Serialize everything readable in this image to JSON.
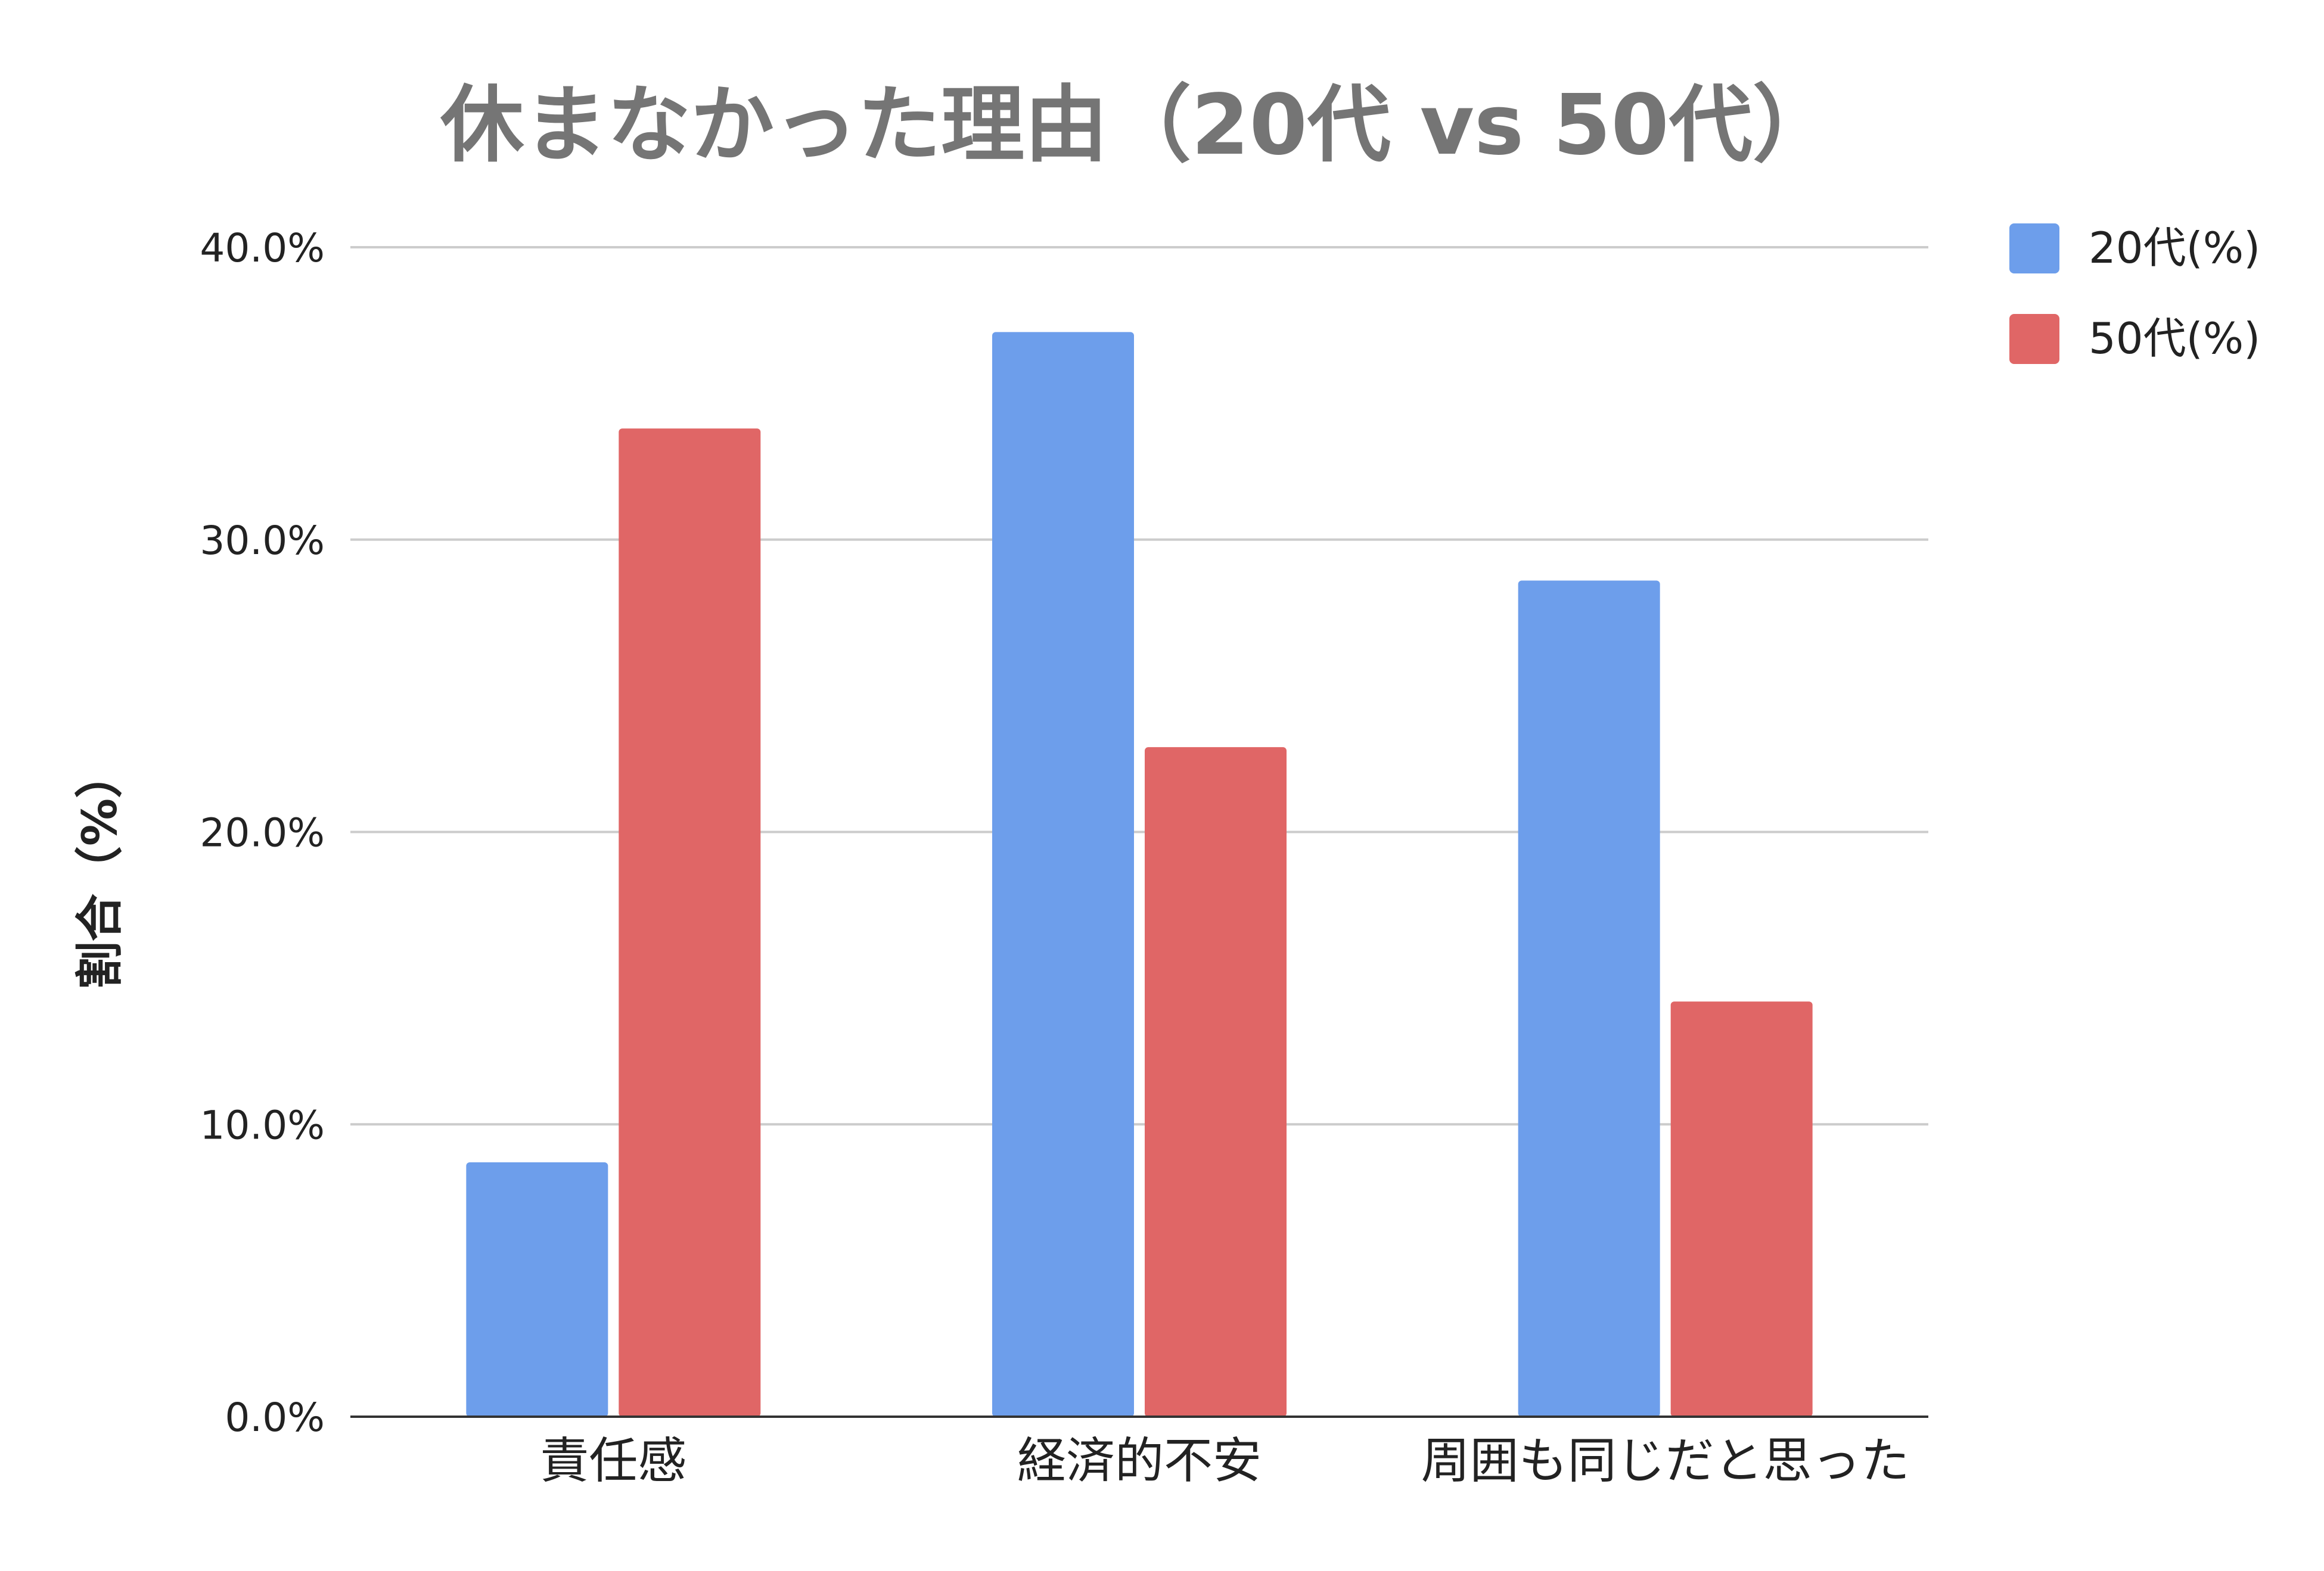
{
  "chart_data": {
    "type": "bar",
    "title": "休まなかった理由（20代 vs 50代）",
    "xlabel": "",
    "ylabel": "割合（%）",
    "categories": [
      "責任感",
      "経済的不安",
      "周囲も同じだと思った"
    ],
    "series": [
      {
        "name": "20代(%)",
        "values": [
          8.7,
          37.1,
          28.6
        ],
        "color": "#6d9eeb"
      },
      {
        "name": "50代(%)",
        "values": [
          33.8,
          22.9,
          14.2
        ],
        "color": "#e06666"
      }
    ],
    "ylim": [
      0,
      40
    ],
    "yticks": [
      "0.0%",
      "10.0%",
      "20.0%",
      "30.0%",
      "40.0%"
    ],
    "grid": true,
    "legend": "right"
  }
}
